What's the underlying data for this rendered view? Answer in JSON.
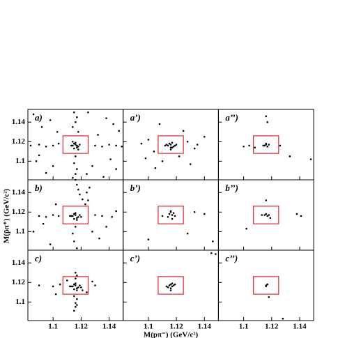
{
  "chart_data": [
    {
      "type": "scatter",
      "label": "a)",
      "xlim": [
        1.082,
        1.15
      ],
      "ylim": [
        1.081,
        1.153
      ],
      "xticks": [
        1.1,
        1.12,
        1.14
      ],
      "yticks": [
        1.1,
        1.12,
        1.14
      ],
      "color": "#000000",
      "signal_box": {
        "x": [
          1.107,
          1.125
        ],
        "y": [
          1.108,
          1.126
        ],
        "color": "#e8262b"
      },
      "x": [
        1.114,
        1.116,
        1.118,
        1.115,
        1.117,
        1.113,
        1.119,
        1.116,
        1.115,
        1.117,
        1.114,
        1.118,
        1.115,
        1.117,
        1.116,
        1.114,
        1.118,
        1.116,
        1.115,
        1.117,
        1.116,
        1.114,
        1.084,
        1.09,
        1.095,
        1.1,
        1.104,
        1.13,
        1.135,
        1.14,
        1.145,
        1.149,
        1.086,
        1.092,
        1.098,
        1.103,
        1.125,
        1.132,
        1.138,
        1.143,
        1.147,
        1.088,
        1.095,
        1.128,
        1.136,
        1.145,
        1.09,
        1.1,
        1.124,
        1.141
      ],
      "y": [
        1.116,
        1.117,
        1.115,
        1.118,
        1.114,
        1.116,
        1.117,
        1.119,
        1.113,
        1.116,
        1.12,
        1.112,
        1.15,
        1.145,
        1.14,
        1.135,
        1.13,
        1.105,
        1.098,
        1.092,
        1.087,
        1.083,
        1.116,
        1.117,
        1.115,
        1.116,
        1.118,
        1.116,
        1.115,
        1.117,
        1.116,
        1.115,
        1.148,
        1.135,
        1.142,
        1.13,
        1.15,
        1.127,
        1.144,
        1.138,
        1.131,
        1.1,
        1.088,
        1.095,
        1.084,
        1.092,
        1.106,
        1.095,
        1.087,
        1.102
      ]
    },
    {
      "type": "scatter",
      "label": "a’)",
      "xlim": [
        1.082,
        1.15
      ],
      "ylim": [
        1.081,
        1.153
      ],
      "xticks": [
        1.1,
        1.12,
        1.14
      ],
      "yticks": [
        1.1,
        1.12,
        1.14
      ],
      "color": "#000000",
      "signal_box": {
        "x": [
          1.107,
          1.125
        ],
        "y": [
          1.108,
          1.126
        ],
        "color": "#e8262b"
      },
      "x": [
        1.114,
        1.116,
        1.118,
        1.115,
        1.117,
        1.119,
        1.113,
        1.116,
        1.12,
        1.112,
        1.117,
        1.116,
        1.095,
        1.1,
        1.104,
        1.128,
        1.133,
        1.14,
        1.098,
        1.13,
        1.105,
        1.125,
        1.122,
        1.11,
        1.108,
        1.135
      ],
      "y": [
        1.116,
        1.117,
        1.115,
        1.118,
        1.114,
        1.116,
        1.117,
        1.112,
        1.117,
        1.116,
        1.119,
        1.114,
        1.118,
        1.122,
        1.11,
        1.12,
        1.113,
        1.125,
        1.103,
        1.097,
        1.093,
        1.131,
        1.105,
        1.1,
        1.138,
        1.117
      ]
    },
    {
      "type": "scatter",
      "label": "a’’)",
      "xlim": [
        1.082,
        1.15
      ],
      "ylim": [
        1.081,
        1.153
      ],
      "xticks": [
        1.1,
        1.12,
        1.14
      ],
      "yticks": [
        1.1,
        1.12,
        1.14
      ],
      "color": "#000000",
      "signal_box": {
        "x": [
          1.107,
          1.125
        ],
        "y": [
          1.108,
          1.126
        ],
        "color": "#e8262b"
      },
      "x": [
        1.115,
        1.116,
        1.117,
        1.116,
        1.114,
        1.118,
        1.1,
        1.104,
        1.108,
        1.126,
        1.133,
        1.148,
        1.116,
        1.117
      ],
      "y": [
        1.116,
        1.118,
        1.115,
        1.117,
        1.116,
        1.117,
        1.115,
        1.116,
        1.114,
        1.116,
        1.105,
        1.102,
        1.146,
        1.14
      ]
    },
    {
      "type": "scatter",
      "label": "b)",
      "xlim": [
        1.082,
        1.15
      ],
      "ylim": [
        1.081,
        1.153
      ],
      "xticks": [
        1.1,
        1.12,
        1.14
      ],
      "yticks": [
        1.1,
        1.12,
        1.14
      ],
      "color": "#000000",
      "signal_box": {
        "x": [
          1.107,
          1.125
        ],
        "y": [
          1.108,
          1.126
        ],
        "color": "#e8262b"
      },
      "x": [
        1.114,
        1.116,
        1.118,
        1.115,
        1.117,
        1.113,
        1.119,
        1.116,
        1.115,
        1.117,
        1.112,
        1.12,
        1.116,
        1.117,
        1.118,
        1.119,
        1.121,
        1.123,
        1.116,
        1.114,
        1.115,
        1.117,
        1.09,
        1.095,
        1.1,
        1.104,
        1.13,
        1.135,
        1.142,
        1.086,
        1.093,
        1.128,
        1.133,
        1.145,
        1.102,
        1.125,
        1.098,
        1.138,
        1.126,
        1.124
      ],
      "y": [
        1.116,
        1.117,
        1.115,
        1.118,
        1.114,
        1.116,
        1.117,
        1.119,
        1.113,
        1.112,
        1.116,
        1.115,
        1.153,
        1.148,
        1.143,
        1.138,
        1.133,
        1.128,
        1.105,
        1.098,
        1.09,
        1.083,
        1.116,
        1.115,
        1.117,
        1.116,
        1.117,
        1.116,
        1.115,
        1.1,
        1.108,
        1.1,
        1.093,
        1.121,
        1.128,
        1.132,
        1.087,
        1.105,
        1.145,
        1.14
      ]
    },
    {
      "type": "scatter",
      "label": "b’)",
      "xlim": [
        1.082,
        1.15
      ],
      "ylim": [
        1.081,
        1.153
      ],
      "xticks": [
        1.1,
        1.12,
        1.14
      ],
      "yticks": [
        1.1,
        1.12,
        1.14
      ],
      "color": "#000000",
      "signal_box": {
        "x": [
          1.107,
          1.125
        ],
        "y": [
          1.108,
          1.126
        ],
        "color": "#e8262b"
      },
      "x": [
        1.115,
        1.116,
        1.117,
        1.116,
        1.118,
        1.114,
        1.119,
        1.117,
        1.11,
        1.133,
        1.14,
        1.146,
        1.128,
        1.1
      ],
      "y": [
        1.118,
        1.12,
        1.117,
        1.121,
        1.119,
        1.115,
        1.116,
        1.113,
        1.116,
        1.12,
        1.118,
        1.09,
        1.098,
        1.092
      ]
    },
    {
      "type": "scatter",
      "label": "b’’)",
      "xlim": [
        1.082,
        1.15
      ],
      "ylim": [
        1.081,
        1.153
      ],
      "xticks": [
        1.1,
        1.12,
        1.14
      ],
      "yticks": [
        1.1,
        1.12,
        1.14
      ],
      "color": "#000000",
      "signal_box": {
        "x": [
          1.107,
          1.125
        ],
        "y": [
          1.108,
          1.126
        ],
        "color": "#e8262b"
      },
      "x": [
        1.113,
        1.115,
        1.116,
        1.117,
        1.118,
        1.119,
        1.102,
        1.138,
        1.141,
        1.116
      ],
      "y": [
        1.117,
        1.117,
        1.118,
        1.116,
        1.117,
        1.114,
        1.103,
        1.118,
        1.116,
        1.132
      ]
    },
    {
      "type": "scatter",
      "label": "c)",
      "xlim": [
        1.082,
        1.15
      ],
      "ylim": [
        1.081,
        1.153
      ],
      "xticks": [
        1.1,
        1.12,
        1.14
      ],
      "yticks": [
        1.1,
        1.12,
        1.14
      ],
      "color": "#000000",
      "signal_box": {
        "x": [
          1.107,
          1.125
        ],
        "y": [
          1.108,
          1.126
        ],
        "color": "#e8262b"
      },
      "x": [
        1.114,
        1.116,
        1.118,
        1.115,
        1.117,
        1.113,
        1.119,
        1.116,
        1.115,
        1.117,
        1.112,
        1.12,
        1.116,
        1.117,
        1.116,
        1.115,
        1.117,
        1.116,
        1.116,
        1.115,
        1.117,
        1.09,
        1.1,
        1.105,
        1.13,
        1.128,
        1.11,
        1.102,
        1.124,
        1.121
      ],
      "y": [
        1.116,
        1.117,
        1.115,
        1.118,
        1.114,
        1.116,
        1.117,
        1.119,
        1.113,
        1.112,
        1.116,
        1.115,
        1.13,
        1.127,
        1.124,
        1.106,
        1.103,
        1.099,
        1.095,
        1.091,
        1.097,
        1.117,
        1.116,
        1.118,
        1.117,
        1.121,
        1.122,
        1.108,
        1.11,
        1.112
      ]
    },
    {
      "type": "scatter",
      "label": "c’)",
      "xlim": [
        1.082,
        1.15
      ],
      "ylim": [
        1.081,
        1.153
      ],
      "xticks": [
        1.1,
        1.12,
        1.14
      ],
      "yticks": [
        1.1,
        1.12,
        1.14
      ],
      "color": "#000000",
      "x_label": "M(pπ⁻) (GeV/c²)",
      "signal_box": {
        "x": [
          1.107,
          1.125
        ],
        "y": [
          1.108,
          1.126
        ],
        "color": "#e8262b"
      },
      "x": [
        1.115,
        1.116,
        1.117,
        1.118,
        1.114,
        1.116,
        1.117,
        1.113,
        1.119,
        1.145,
        1.148,
        1.116
      ],
      "y": [
        1.117,
        1.118,
        1.116,
        1.117,
        1.115,
        1.114,
        1.119,
        1.116,
        1.118,
        1.15,
        1.149,
        1.112
      ]
    },
    {
      "type": "scatter",
      "label": "c’’)",
      "xlim": [
        1.082,
        1.15
      ],
      "ylim": [
        1.081,
        1.153
      ],
      "xticks": [
        1.1,
        1.12,
        1.14
      ],
      "yticks": [
        1.1,
        1.12,
        1.14
      ],
      "color": "#000000",
      "signal_box": {
        "x": [
          1.107,
          1.125
        ],
        "y": [
          1.108,
          1.126
        ],
        "color": "#e8262b"
      },
      "x": [
        1.116,
        1.117,
        1.118,
        1.128,
        1.116
      ],
      "y": [
        1.117,
        1.118,
        1.105,
        1.083,
        1.116
      ]
    }
  ],
  "y_label": "M(p̄π⁺) (GeV/c²)"
}
